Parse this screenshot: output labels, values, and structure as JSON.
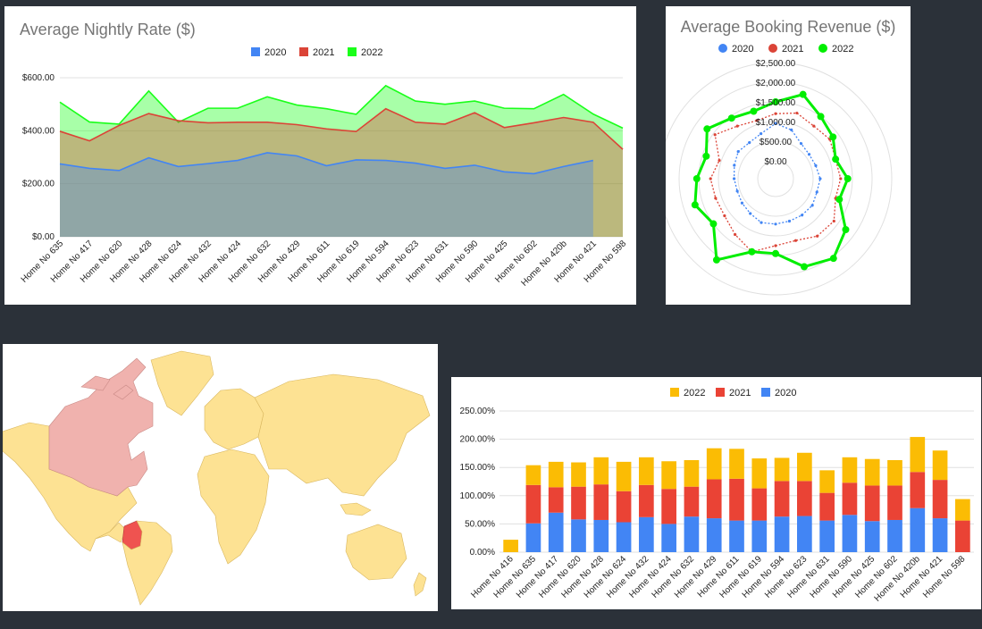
{
  "chart_data": [
    {
      "type": "area",
      "title": "Average Nightly Rate ($)",
      "categories": [
        "Home No 635",
        "Home No 417",
        "Home No 620",
        "Home No 428",
        "Home No 624",
        "Home No 432",
        "Home No 424",
        "Home No 632",
        "Home No 429",
        "Home No 611",
        "Home No 619",
        "Home No 594",
        "Home No 623",
        "Home No 631",
        "Home No 590",
        "Home No 425",
        "Home No 602",
        "Home No 420b",
        "Home No 421",
        "Home No 598"
      ],
      "ylim": [
        0,
        600
      ],
      "y_ticks": [
        "$0.00",
        "$200.00",
        "$400.00",
        "$600.00"
      ],
      "legend_position": "top",
      "series": [
        {
          "name": "2020",
          "color": "#4285f4",
          "values": [
            275,
            258,
            250,
            298,
            265,
            276,
            288,
            317,
            305,
            268,
            290,
            288,
            278,
            258,
            270,
            245,
            238,
            265,
            288,
            null
          ]
        },
        {
          "name": "2021",
          "color": "#db4437",
          "values": [
            398,
            362,
            420,
            465,
            438,
            430,
            432,
            432,
            423,
            407,
            397,
            483,
            432,
            425,
            468,
            412,
            430,
            450,
            432,
            330
          ]
        },
        {
          "name": "2022",
          "color": "#1aff1a",
          "values": [
            508,
            433,
            425,
            550,
            432,
            485,
            485,
            528,
            497,
            483,
            462,
            570,
            512,
            500,
            512,
            485,
            483,
            537,
            463,
            410
          ]
        }
      ]
    },
    {
      "type": "radar",
      "title": "Average Booking Revenue ($)",
      "ylim": [
        0,
        2500
      ],
      "r_ticks": [
        "$0.00",
        "$500.00",
        "$1,000.00",
        "$1,500.00",
        "$2,000.00",
        "$2,500.00"
      ],
      "legend_position": "top",
      "series": [
        {
          "name": "2020",
          "color": "#4285f4",
          "values": [
            950,
            850,
            650,
            600,
            620,
            680,
            650,
            700,
            690,
            680,
            700,
            720,
            640,
            600,
            570,
            600,
            650,
            720,
            680,
            750
          ]
        },
        {
          "name": "2021",
          "color": "#db4437",
          "values": [
            1200,
            1300,
            1200,
            1250,
            1150,
            1200,
            1150,
            1380,
            1350,
            1200,
            1250,
            1500,
            1300,
            1150,
            1150,
            1200,
            1050,
            1450,
            1200,
            1100
          ]
        },
        {
          "name": "2022",
          "color": "#00ee00",
          "values": [
            1500,
            1800,
            1500,
            1350,
            1150,
            1380,
            1250,
            1750,
            2050,
            1900,
            1450,
            1500,
            2100,
            1500,
            1700,
            1550,
            1400,
            1700,
            1450,
            1350
          ]
        }
      ]
    },
    {
      "type": "map",
      "regions": [
        {
          "name": "Canada",
          "color": "#f0b2ae"
        },
        {
          "name": "Colombia",
          "color": "#ef5350"
        },
        {
          "name": "other",
          "color": "#fde293"
        }
      ]
    },
    {
      "type": "bar",
      "stacked": true,
      "categories": [
        "Home No 416",
        "Home No 635",
        "Home No 417",
        "Home No 620",
        "Home No 428",
        "Home No 624",
        "Home No 432",
        "Home No 424",
        "Home No 632",
        "Home No 429",
        "Home No 611",
        "Home No 619",
        "Home No 594",
        "Home No 623",
        "Home No 631",
        "Home No 590",
        "Home No 425",
        "Home No 602",
        "Home No 420b",
        "Home No 421",
        "Home No 598"
      ],
      "ylim": [
        0,
        250
      ],
      "y_ticks": [
        "0.00%",
        "50.00%",
        "100.00%",
        "150.00%",
        "200.00%",
        "250.00%"
      ],
      "legend_position": "top",
      "series": [
        {
          "name": "2022",
          "color": "#fbbc04",
          "values": [
            22,
            35,
            45,
            43,
            48,
            52,
            49,
            49,
            47,
            55,
            53,
            53,
            41,
            50,
            40,
            45,
            47,
            45,
            62,
            52,
            38
          ]
        },
        {
          "name": "2021",
          "color": "#ea4335",
          "values": [
            0,
            68,
            45,
            58,
            63,
            55,
            57,
            62,
            53,
            69,
            74,
            57,
            63,
            62,
            49,
            57,
            63,
            61,
            64,
            68,
            56
          ]
        },
        {
          "name": "2020",
          "color": "#4285f4",
          "values": [
            0,
            51,
            70,
            58,
            57,
            53,
            62,
            50,
            63,
            60,
            56,
            56,
            63,
            64,
            56,
            66,
            55,
            57,
            78,
            60,
            0
          ]
        }
      ]
    }
  ]
}
